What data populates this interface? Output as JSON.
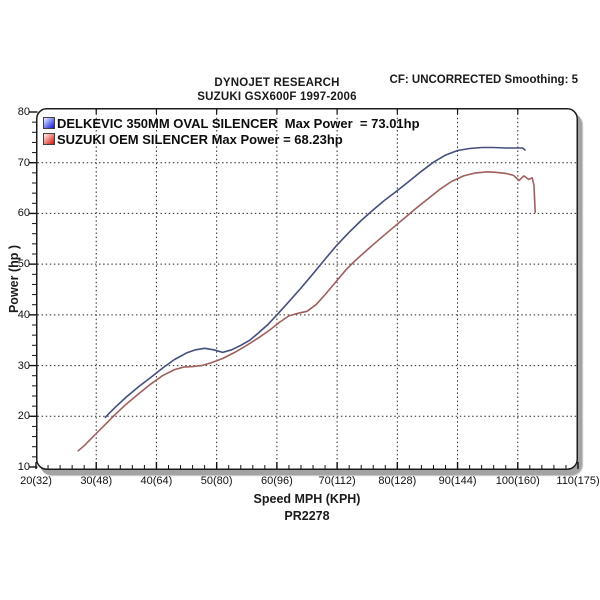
{
  "header": {
    "title": "DYNOJET RESEARCH",
    "subtitle": "SUZUKI GSX600F 1997-2006",
    "right_info": "CF: UNCORRECTED  Smoothing: 5"
  },
  "footer": {
    "code": "PR2278"
  },
  "colors": {
    "delkevic_line": "#434f7d",
    "oem_line": "#a05f5c",
    "legend_blue": "#1212cd",
    "legend_red": "#cd1212",
    "grid": "#2a2a2a",
    "axis_shadow": "#a3a3a3"
  },
  "chart_data": {
    "type": "line",
    "title": "DYNOJET RESEARCH",
    "subtitle": "SUZUKI GSX600F 1997-2006",
    "xlabel": "Speed MPH (KPH)",
    "ylabel": "Power (hp )",
    "xlim": [
      20,
      110
    ],
    "ylim": [
      10,
      80
    ],
    "grid": "dotted black; horizontal lines at 20-70 hp, vertical lines at 30-100 mph",
    "legend_position": "top-left inside plot",
    "x_tick_values": [
      20,
      30,
      40,
      50,
      60,
      70,
      80,
      90,
      100,
      110
    ],
    "x_tick_labels": [
      "20(32)",
      "30(48)",
      "40(64)",
      "50(80)",
      "60(96)",
      "70(112)",
      "80(128)",
      "90(144)",
      "100(160)",
      "110(175)"
    ],
    "y_tick_values": [
      80,
      70,
      60,
      50,
      40,
      30,
      20,
      10
    ],
    "y_tick_labels": [
      "80",
      "70",
      "60",
      "50",
      "40",
      "30",
      "20",
      "10"
    ],
    "minor_tick_step_x_mph": 2,
    "minor_tick_step_y_hp": 2,
    "series": [
      {
        "name": "DELKEVIC 350MM OVAL SILENCER",
        "legend_label": "DELKEVIC 350MM OVAL SILENCER  Max Power  = 73.01hp",
        "max_power_hp": 73.01,
        "color": "#434f7d",
        "points_mph_hp": [
          [
            31.5,
            19.8
          ],
          [
            33,
            21.6
          ],
          [
            35,
            23.8
          ],
          [
            37,
            25.8
          ],
          [
            39,
            27.6
          ],
          [
            41,
            29.5
          ],
          [
            43,
            31.2
          ],
          [
            45,
            32.5
          ],
          [
            46.5,
            33.1
          ],
          [
            48,
            33.4
          ],
          [
            49.5,
            33.1
          ],
          [
            51,
            32.6
          ],
          [
            52.5,
            33.1
          ],
          [
            54,
            34.0
          ],
          [
            55.5,
            35.0
          ],
          [
            57,
            36.5
          ],
          [
            58.5,
            38.1
          ],
          [
            60,
            40.0
          ],
          [
            62,
            42.6
          ],
          [
            64,
            45.3
          ],
          [
            66,
            48.1
          ],
          [
            68,
            51.0
          ],
          [
            70,
            53.8
          ],
          [
            72,
            56.3
          ],
          [
            74,
            58.6
          ],
          [
            76,
            60.7
          ],
          [
            78,
            62.7
          ],
          [
            80,
            64.5
          ],
          [
            82,
            66.4
          ],
          [
            84,
            68.3
          ],
          [
            86,
            70.1
          ],
          [
            88,
            71.5
          ],
          [
            90,
            72.4
          ],
          [
            92,
            72.8
          ],
          [
            94,
            73.0
          ],
          [
            96,
            73.0
          ],
          [
            98,
            72.9
          ],
          [
            100,
            72.9
          ],
          [
            100.8,
            72.9
          ],
          [
            101.2,
            72.5
          ]
        ]
      },
      {
        "name": "SUZUKI OEM SILENCER",
        "legend_label": "SUZUKI OEM SILENCER Max Power = 68.23hp",
        "max_power_hp": 68.23,
        "color": "#a05f5c",
        "points_mph_hp": [
          [
            27,
            13.2
          ],
          [
            28,
            14.2
          ],
          [
            29,
            15.4
          ],
          [
            30,
            16.6
          ],
          [
            31.5,
            18.4
          ],
          [
            33,
            20.2
          ],
          [
            35,
            22.4
          ],
          [
            37,
            24.4
          ],
          [
            39,
            26.3
          ],
          [
            41,
            28.0
          ],
          [
            43,
            29.2
          ],
          [
            44.5,
            29.7
          ],
          [
            46,
            29.8
          ],
          [
            47.5,
            30.0
          ],
          [
            49,
            30.5
          ],
          [
            51,
            31.4
          ],
          [
            53,
            32.6
          ],
          [
            55,
            34.0
          ],
          [
            57,
            35.5
          ],
          [
            59,
            37.2
          ],
          [
            60.5,
            38.6
          ],
          [
            62,
            39.8
          ],
          [
            63.5,
            40.3
          ],
          [
            65,
            40.7
          ],
          [
            66.5,
            42.0
          ],
          [
            68,
            44.0
          ],
          [
            70,
            46.8
          ],
          [
            71.5,
            48.9
          ],
          [
            73,
            50.7
          ],
          [
            75,
            52.8
          ],
          [
            77,
            54.9
          ],
          [
            79,
            56.9
          ],
          [
            81,
            58.9
          ],
          [
            83,
            60.9
          ],
          [
            85,
            62.8
          ],
          [
            87,
            64.7
          ],
          [
            89,
            66.3
          ],
          [
            91,
            67.4
          ],
          [
            93,
            68.0
          ],
          [
            95,
            68.2
          ],
          [
            96.5,
            68.1
          ],
          [
            98,
            67.9
          ],
          [
            99.3,
            67.5
          ],
          [
            100.2,
            66.5
          ],
          [
            101,
            67.4
          ],
          [
            101.8,
            66.7
          ],
          [
            102.4,
            67.0
          ],
          [
            102.7,
            65.5
          ],
          [
            102.9,
            60.2
          ]
        ]
      }
    ]
  }
}
